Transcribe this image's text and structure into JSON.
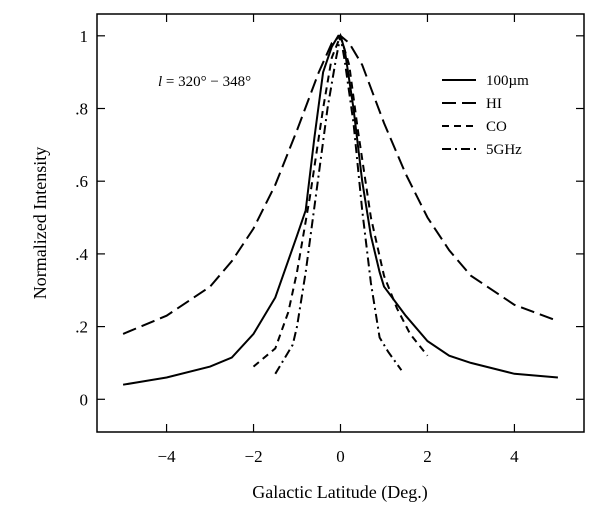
{
  "chart_data": {
    "type": "line",
    "xlabel": "Galactic Latitude (Deg.)",
    "ylabel": "Normalized Intensity",
    "xlim": [
      -5.6,
      5.6
    ],
    "ylim": [
      -0.09,
      1.06
    ],
    "x_ticks": [
      -4,
      -2,
      0,
      2,
      4
    ],
    "x_tick_labels": [
      "−4",
      "−2",
      "0",
      "2",
      "4"
    ],
    "y_ticks": [
      0,
      0.2,
      0.4,
      0.6,
      0.8,
      1.0
    ],
    "y_tick_labels": [
      "0",
      ".2",
      ".4",
      ".6",
      ".8",
      "1"
    ],
    "annotation": {
      "italic": "l",
      "rest": " = 320° − 348°"
    },
    "legend_position": "top-right",
    "grid": false,
    "series": [
      {
        "name": "100µm",
        "style": "solid",
        "x": [
          -5,
          -4,
          -3,
          -2.5,
          -2,
          -1.5,
          -1,
          -0.8,
          -0.6,
          -0.4,
          -0.2,
          -0.05,
          0,
          0.1,
          0.3,
          0.5,
          0.7,
          0.9,
          1.0,
          1.5,
          2.0,
          2.5,
          3,
          4,
          5
        ],
        "y": [
          0.04,
          0.06,
          0.09,
          0.115,
          0.18,
          0.28,
          0.45,
          0.52,
          0.72,
          0.9,
          0.97,
          1.0,
          1.0,
          0.96,
          0.8,
          0.6,
          0.45,
          0.35,
          0.31,
          0.23,
          0.16,
          0.12,
          0.1,
          0.07,
          0.06
        ]
      },
      {
        "name": "HI",
        "style": "long-dash",
        "x": [
          -5,
          -4,
          -3,
          -2.5,
          -2,
          -1.5,
          -1,
          -0.5,
          -0.2,
          0,
          0.2,
          0.5,
          1,
          1.5,
          2,
          2.5,
          3,
          4,
          5
        ],
        "y": [
          0.18,
          0.23,
          0.31,
          0.38,
          0.47,
          0.59,
          0.74,
          0.9,
          0.98,
          1.0,
          0.98,
          0.92,
          0.76,
          0.62,
          0.5,
          0.41,
          0.34,
          0.26,
          0.215
        ]
      },
      {
        "name": "CO",
        "style": "short-dash",
        "x": [
          -2,
          -1.5,
          -1.2,
          -1.0,
          -0.7,
          -0.4,
          -0.2,
          0,
          0.2,
          0.4,
          0.7,
          1.0,
          1.3,
          1.6,
          2.0
        ],
        "y": [
          0.09,
          0.14,
          0.24,
          0.35,
          0.56,
          0.8,
          0.94,
          1.0,
          0.92,
          0.74,
          0.5,
          0.34,
          0.25,
          0.18,
          0.12
        ]
      },
      {
        "name": "5GHz",
        "style": "dash-dot",
        "x": [
          -1.5,
          -1.1,
          -1.0,
          -0.8,
          -0.5,
          -0.3,
          -0.1,
          0,
          0.1,
          0.3,
          0.5,
          0.7,
          0.9,
          1.1,
          1.4
        ],
        "y": [
          0.07,
          0.15,
          0.2,
          0.35,
          0.62,
          0.8,
          0.94,
          1.0,
          0.93,
          0.76,
          0.52,
          0.32,
          0.17,
          0.13,
          0.08
        ]
      }
    ]
  }
}
